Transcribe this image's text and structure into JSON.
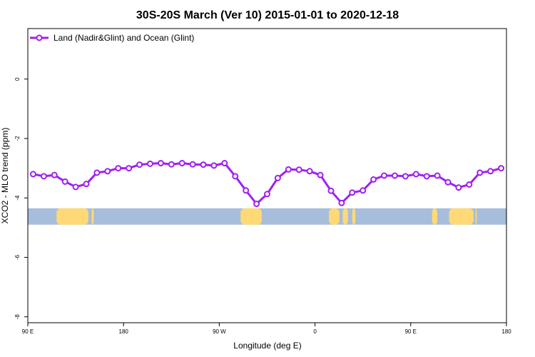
{
  "chart_data": {
    "type": "line",
    "title": "30S-20S March (Ver 10)   2015-01-01 to 2020-12-18",
    "xlabel": "Longitude (deg E)",
    "ylabel": "XCO2 - MLO trend (ppm)",
    "xlim": [
      90,
      540
    ],
    "ylim": [
      -8.2,
      1.7
    ],
    "x_ticks": [
      {
        "value": 90,
        "label": "90 E"
      },
      {
        "value": 180,
        "label": "180"
      },
      {
        "value": 270,
        "label": "90 W"
      },
      {
        "value": 360,
        "label": "0"
      },
      {
        "value": 450,
        "label": "90 E"
      },
      {
        "value": 540,
        "label": "180"
      }
    ],
    "y_ticks": [
      {
        "value": 0,
        "label": "0"
      },
      {
        "value": -2,
        "label": "-2"
      },
      {
        "value": -4,
        "label": "-4"
      },
      {
        "value": -6,
        "label": "-6"
      },
      {
        "value": -8,
        "label": "-8"
      }
    ],
    "legend_position": "top-left",
    "grid": false,
    "colors": {
      "series": "#a020f0",
      "ocean": "#a6bddb",
      "land": "#fed976"
    },
    "series": [
      {
        "name": "Land (Nadir&Glint) and Ocean (Glint)",
        "x": [
          95,
          105,
          115,
          125,
          135,
          145,
          155,
          165,
          175,
          185,
          195,
          205,
          215,
          225,
          235,
          245,
          255,
          265,
          275,
          285,
          295,
          305,
          315,
          325,
          335,
          345,
          355,
          365,
          375,
          385,
          395,
          405,
          415,
          425,
          435,
          445,
          455,
          465,
          475,
          485,
          495,
          505,
          515,
          525,
          535
        ],
        "y": [
          -3.2,
          -3.27,
          -3.23,
          -3.45,
          -3.63,
          -3.53,
          -3.15,
          -3.1,
          -3.0,
          -3.0,
          -2.88,
          -2.85,
          -2.83,
          -2.87,
          -2.83,
          -2.87,
          -2.88,
          -2.91,
          -2.83,
          -3.27,
          -3.75,
          -4.2,
          -3.87,
          -3.33,
          -3.04,
          -3.05,
          -3.1,
          -3.23,
          -3.76,
          -4.17,
          -3.82,
          -3.75,
          -3.38,
          -3.25,
          -3.25,
          -3.27,
          -3.2,
          -3.27,
          -3.25,
          -3.47,
          -3.65,
          -3.55,
          -3.15,
          -3.1,
          -3.0
        ]
      }
    ],
    "map_strip": {
      "lat_range": "30S-20S",
      "y_range": [
        -4.35,
        -4.9
      ],
      "land_spans": [
        [
          117,
          147
        ],
        [
          150,
          152
        ],
        [
          290,
          310
        ],
        [
          373,
          383
        ],
        [
          386,
          391
        ],
        [
          395,
          398
        ],
        [
          470,
          475
        ],
        [
          486,
          509
        ],
        [
          511,
          512
        ]
      ]
    }
  }
}
